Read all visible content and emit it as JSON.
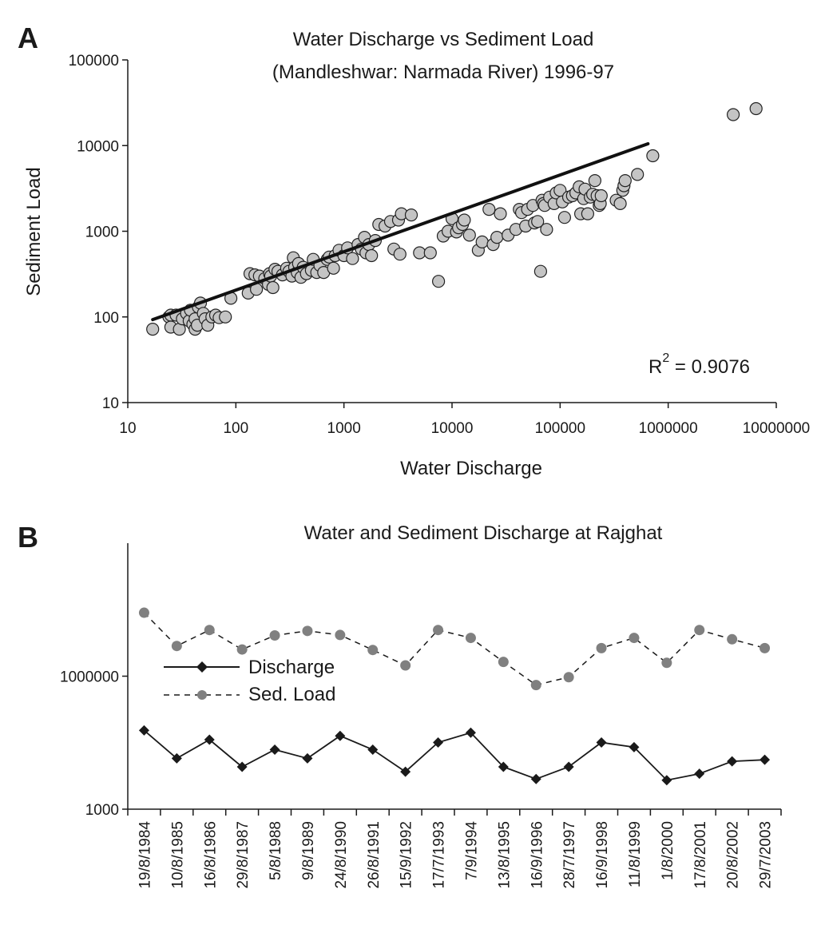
{
  "chart_data": [
    {
      "panel": "A",
      "type": "scatter",
      "title_lines": [
        "Water Discharge vs Sediment Load",
        "(Mandleshwar: Narmada River) 1996-97"
      ],
      "xlabel": "Water Discharge",
      "ylabel": "Sediment Load",
      "x_scale": "log",
      "y_scale": "log",
      "xlim": [
        10,
        10000000
      ],
      "ylim": [
        10,
        100000
      ],
      "x_ticks": [
        "10",
        "100",
        "1000",
        "10000",
        "100000",
        "1000000",
        "10000000"
      ],
      "y_ticks": [
        "10",
        "100",
        "1000",
        "10000",
        "100000"
      ],
      "r2_base": "R",
      "r2_exp": "2",
      "r2_rest": " = 0.9076",
      "trendline": {
        "x": [
          17,
          650000
        ],
        "y": [
          93,
          10500
        ]
      },
      "points": [
        [
          17,
          72
        ],
        [
          24,
          100
        ],
        [
          25,
          105
        ],
        [
          25,
          76
        ],
        [
          28,
          105
        ],
        [
          30,
          72
        ],
        [
          32,
          95
        ],
        [
          35,
          110
        ],
        [
          37,
          90
        ],
        [
          38,
          120
        ],
        [
          40,
          82
        ],
        [
          42,
          95
        ],
        [
          42,
          72
        ],
        [
          44,
          80
        ],
        [
          45,
          130
        ],
        [
          47,
          145
        ],
        [
          50,
          110
        ],
        [
          52,
          95
        ],
        [
          55,
          80
        ],
        [
          60,
          100
        ],
        [
          65,
          105
        ],
        [
          70,
          98
        ],
        [
          80,
          100
        ],
        [
          90,
          165
        ],
        [
          130,
          190
        ],
        [
          135,
          320
        ],
        [
          150,
          310
        ],
        [
          155,
          210
        ],
        [
          165,
          300
        ],
        [
          185,
          280
        ],
        [
          200,
          240
        ],
        [
          205,
          320
        ],
        [
          210,
          300
        ],
        [
          220,
          220
        ],
        [
          230,
          360
        ],
        [
          245,
          340
        ],
        [
          270,
          310
        ],
        [
          295,
          370
        ],
        [
          310,
          340
        ],
        [
          330,
          300
        ],
        [
          340,
          490
        ],
        [
          350,
          380
        ],
        [
          370,
          330
        ],
        [
          380,
          420
        ],
        [
          400,
          290
        ],
        [
          420,
          380
        ],
        [
          450,
          320
        ],
        [
          500,
          350
        ],
        [
          520,
          470
        ],
        [
          560,
          330
        ],
        [
          600,
          400
        ],
        [
          650,
          330
        ],
        [
          700,
          470
        ],
        [
          730,
          500
        ],
        [
          800,
          370
        ],
        [
          830,
          520
        ],
        [
          900,
          600
        ],
        [
          1000,
          520
        ],
        [
          1080,
          640
        ],
        [
          1200,
          480
        ],
        [
          1350,
          700
        ],
        [
          1450,
          620
        ],
        [
          1550,
          850
        ],
        [
          1600,
          560
        ],
        [
          1700,
          700
        ],
        [
          1800,
          520
        ],
        [
          1950,
          780
        ],
        [
          2100,
          1200
        ],
        [
          2400,
          1150
        ],
        [
          2700,
          1300
        ],
        [
          2900,
          620
        ],
        [
          3200,
          1350
        ],
        [
          3300,
          540
        ],
        [
          3400,
          1600
        ],
        [
          4200,
          1550
        ],
        [
          5000,
          560
        ],
        [
          6300,
          560
        ],
        [
          7500,
          260
        ],
        [
          8300,
          880
        ],
        [
          9200,
          1000
        ],
        [
          10000,
          1400
        ],
        [
          11000,
          980
        ],
        [
          11500,
          1100
        ],
        [
          12500,
          1200
        ],
        [
          13000,
          1350
        ],
        [
          14500,
          900
        ],
        [
          17500,
          600
        ],
        [
          19000,
          750
        ],
        [
          22000,
          1800
        ],
        [
          24000,
          700
        ],
        [
          26000,
          850
        ],
        [
          28000,
          1600
        ],
        [
          33000,
          900
        ],
        [
          39000,
          1050
        ],
        [
          42000,
          1800
        ],
        [
          44000,
          1650
        ],
        [
          48000,
          1150
        ],
        [
          50000,
          1800
        ],
        [
          56000,
          2000
        ],
        [
          58000,
          1250
        ],
        [
          62000,
          1300
        ],
        [
          66000,
          340
        ],
        [
          68000,
          2300
        ],
        [
          70000,
          2100
        ],
        [
          72000,
          2000
        ],
        [
          75000,
          1050
        ],
        [
          80000,
          2500
        ],
        [
          88000,
          2100
        ],
        [
          92000,
          2800
        ],
        [
          100000,
          3000
        ],
        [
          105000,
          2200
        ],
        [
          110000,
          1450
        ],
        [
          120000,
          2500
        ],
        [
          130000,
          2600
        ],
        [
          140000,
          2800
        ],
        [
          150000,
          3300
        ],
        [
          155000,
          1600
        ],
        [
          165000,
          2400
        ],
        [
          170000,
          3100
        ],
        [
          180000,
          1600
        ],
        [
          190000,
          2500
        ],
        [
          200000,
          2700
        ],
        [
          210000,
          3900
        ],
        [
          220000,
          2600
        ],
        [
          230000,
          2000
        ],
        [
          235000,
          2100
        ],
        [
          240000,
          2600
        ],
        [
          330000,
          2300
        ],
        [
          360000,
          2100
        ],
        [
          380000,
          3000
        ],
        [
          390000,
          3400
        ],
        [
          400000,
          3900
        ],
        [
          520000,
          4600
        ],
        [
          720000,
          7600
        ],
        [
          4000000,
          23000
        ],
        [
          6500000,
          27000
        ]
      ]
    },
    {
      "panel": "B",
      "type": "line",
      "title": "Water and Sediment Discharge at Rajghat",
      "y_scale": "log",
      "ylim": [
        1000,
        1000000000
      ],
      "y_ticks": [
        "1000",
        "1000000"
      ],
      "categories": [
        "19/8/1984",
        "10/8/1985",
        "16/8/1986",
        "29/8/1987",
        "5/8/1988",
        "9/8/1989",
        "24/8/1990",
        "26/8/1991",
        "15/9/1992",
        "17/7/1993",
        "7/9/1994",
        "13/8/1995",
        "16/9/1996",
        "28/7/1997",
        "16/9/1998",
        "11/8/1999",
        "1/8/2000",
        "17/8/2001",
        "20/8/2002",
        "29/7/2003"
      ],
      "series": [
        {
          "name": "Discharge",
          "color": "#1a1a1a",
          "marker": "diamond",
          "line": "solid",
          "values": [
            60000,
            14000,
            37000,
            9000,
            22000,
            14000,
            45000,
            22000,
            7000,
            32000,
            53000,
            9000,
            4800,
            9000,
            32000,
            25000,
            4500,
            6300,
            12000,
            13000
          ]
        },
        {
          "name": "Sed. Load",
          "color": "#808080",
          "marker": "circle",
          "line": "dashed",
          "values": [
            27000000,
            4800000,
            11000000,
            4000000,
            8300000,
            10500000,
            8500000,
            3900000,
            1750000,
            11000000,
            7300000,
            2100000,
            630000,
            950000,
            4300000,
            7300000,
            2000000,
            11000000,
            6800000,
            4300000
          ]
        }
      ],
      "legend_position": "left"
    }
  ]
}
